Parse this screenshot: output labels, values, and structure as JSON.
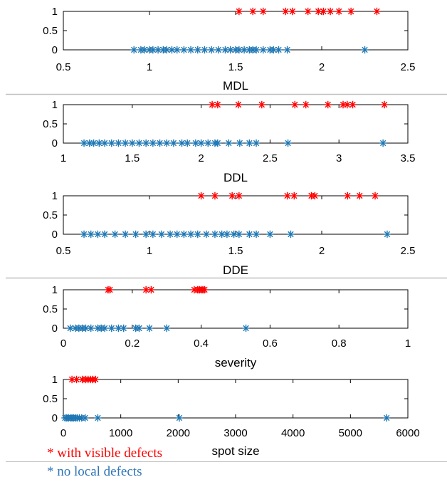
{
  "colors": {
    "with_defects": "#ff0000",
    "no_defects": "#1f77b4",
    "axis": "#000000",
    "separator": "#c0c0c0"
  },
  "legend": {
    "with_defects": "* with visible defects",
    "no_defects": "* no local defects"
  },
  "chart_data": [
    {
      "type": "scatter",
      "marker": "asterisk",
      "xlabel": "MDL",
      "xlim": [
        0.5,
        2.5
      ],
      "ylim": [
        0,
        1
      ],
      "xticks": [
        0.5,
        1,
        1.5,
        2,
        2.5
      ],
      "yticks": [
        0,
        0.5,
        1
      ],
      "x_tick_labels": [
        "0.5",
        "1",
        "1.5",
        "2",
        "2.5"
      ],
      "y_tick_labels": [
        "0",
        "0.5",
        "1"
      ],
      "series": [
        {
          "key": "no_defects",
          "y": 0,
          "x": [
            0.91,
            0.95,
            0.97,
            1.0,
            1.02,
            1.05,
            1.08,
            1.1,
            1.13,
            1.16,
            1.2,
            1.24,
            1.28,
            1.32,
            1.36,
            1.4,
            1.44,
            1.47,
            1.5,
            1.52,
            1.55,
            1.58,
            1.6,
            1.62,
            1.66,
            1.7,
            1.72,
            1.75,
            1.8,
            2.25
          ]
        },
        {
          "key": "with_defects",
          "y": 1,
          "x": [
            1.52,
            1.6,
            1.66,
            1.79,
            1.83,
            1.92,
            1.98,
            2.01,
            2.05,
            2.1,
            2.17,
            2.32
          ]
        }
      ]
    },
    {
      "type": "scatter",
      "marker": "asterisk",
      "xlabel": "DDL",
      "xlim": [
        1,
        3.5
      ],
      "ylim": [
        0,
        1
      ],
      "xticks": [
        1,
        1.5,
        2,
        2.5,
        3,
        3.5
      ],
      "yticks": [
        0,
        0.5,
        1
      ],
      "x_tick_labels": [
        "1",
        "1.5",
        "2",
        "2.5",
        "3",
        "3.5"
      ],
      "y_tick_labels": [
        "0",
        "0.5",
        "1"
      ],
      "series": [
        {
          "key": "no_defects",
          "y": 0,
          "x": [
            1.15,
            1.19,
            1.22,
            1.26,
            1.3,
            1.35,
            1.4,
            1.45,
            1.5,
            1.55,
            1.6,
            1.65,
            1.7,
            1.75,
            1.8,
            1.86,
            1.9,
            1.96,
            2.0,
            2.05,
            2.1,
            2.12,
            2.2,
            2.28,
            2.35,
            2.4,
            2.63,
            3.32
          ]
        },
        {
          "key": "with_defects",
          "y": 1,
          "x": [
            2.08,
            2.12,
            2.27,
            2.44,
            2.68,
            2.76,
            2.92,
            3.03,
            3.06,
            3.1,
            3.33
          ]
        }
      ]
    },
    {
      "type": "scatter",
      "marker": "asterisk",
      "xlabel": "DDE",
      "xlim": [
        0.5,
        2.5
      ],
      "ylim": [
        0,
        1
      ],
      "xticks": [
        0.5,
        1,
        1.5,
        2,
        2.5
      ],
      "yticks": [
        0,
        0.5,
        1
      ],
      "x_tick_labels": [
        "0.5",
        "1",
        "1.5",
        "2",
        "2.5"
      ],
      "y_tick_labels": [
        "0",
        "0.5",
        "1"
      ],
      "series": [
        {
          "key": "no_defects",
          "y": 0,
          "x": [
            0.62,
            0.66,
            0.7,
            0.74,
            0.8,
            0.86,
            0.92,
            0.98,
            1.02,
            1.07,
            1.12,
            1.16,
            1.2,
            1.24,
            1.28,
            1.33,
            1.38,
            1.42,
            1.45,
            1.49,
            1.52,
            1.58,
            1.62,
            1.7,
            1.82,
            2.38
          ]
        },
        {
          "key": "with_defects",
          "y": 1,
          "x": [
            1.3,
            1.38,
            1.48,
            1.52,
            1.8,
            1.84,
            1.94,
            1.96,
            2.15,
            2.22,
            2.31
          ]
        }
      ]
    },
    {
      "type": "scatter",
      "marker": "asterisk",
      "xlabel": "severity",
      "xlim": [
        0,
        1
      ],
      "ylim": [
        0,
        1
      ],
      "xticks": [
        0,
        0.2,
        0.4,
        0.6,
        0.8,
        1
      ],
      "yticks": [
        0,
        0.5,
        1
      ],
      "x_tick_labels": [
        "0",
        "0.2",
        "0.4",
        "0.6",
        "0.8",
        "1"
      ],
      "y_tick_labels": [
        "0",
        "0.5",
        "1"
      ],
      "series": [
        {
          "key": "no_defects",
          "y": 0,
          "x": [
            0.02,
            0.035,
            0.045,
            0.055,
            0.065,
            0.08,
            0.1,
            0.11,
            0.12,
            0.14,
            0.16,
            0.175,
            0.21,
            0.22,
            0.25,
            0.3,
            0.53
          ]
        },
        {
          "key": "with_defects",
          "y": 1,
          "x": [
            0.13,
            0.135,
            0.24,
            0.255,
            0.38,
            0.39,
            0.395,
            0.4,
            0.405,
            0.41
          ]
        }
      ]
    },
    {
      "type": "scatter",
      "marker": "asterisk",
      "xlabel": "spot size",
      "xlim": [
        0,
        6000
      ],
      "ylim": [
        0,
        1
      ],
      "xticks": [
        0,
        1000,
        2000,
        3000,
        4000,
        5000,
        6000
      ],
      "yticks": [
        0,
        0.5,
        1
      ],
      "x_tick_labels": [
        "0",
        "1000",
        "2000",
        "3000",
        "4000",
        "5000",
        "6000"
      ],
      "y_tick_labels": [
        "0",
        "0.5",
        "1"
      ],
      "series": [
        {
          "key": "no_defects",
          "y": 0,
          "x": [
            30,
            60,
            90,
            120,
            150,
            180,
            210,
            240,
            280,
            320,
            380,
            600,
            2020,
            5630
          ]
        },
        {
          "key": "with_defects",
          "y": 1,
          "x": [
            150,
            230,
            330,
            390,
            430,
            470,
            510,
            560
          ]
        }
      ]
    }
  ]
}
